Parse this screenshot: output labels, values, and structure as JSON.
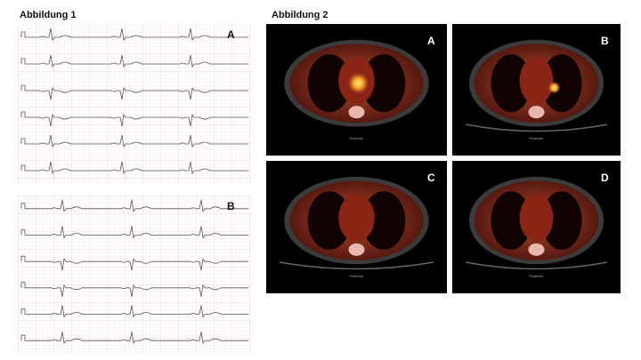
{
  "figure1": {
    "title": "Abbildung 1",
    "panels": [
      {
        "label": "A"
      },
      {
        "label": "B"
      }
    ]
  },
  "figure2": {
    "title": "Abbildung 2",
    "panels": [
      {
        "label": "A",
        "caption": "Posterior"
      },
      {
        "label": "B",
        "caption": "Posterior"
      },
      {
        "label": "C",
        "caption": "Posterior"
      },
      {
        "label": "D",
        "caption": "Posterior"
      }
    ]
  }
}
